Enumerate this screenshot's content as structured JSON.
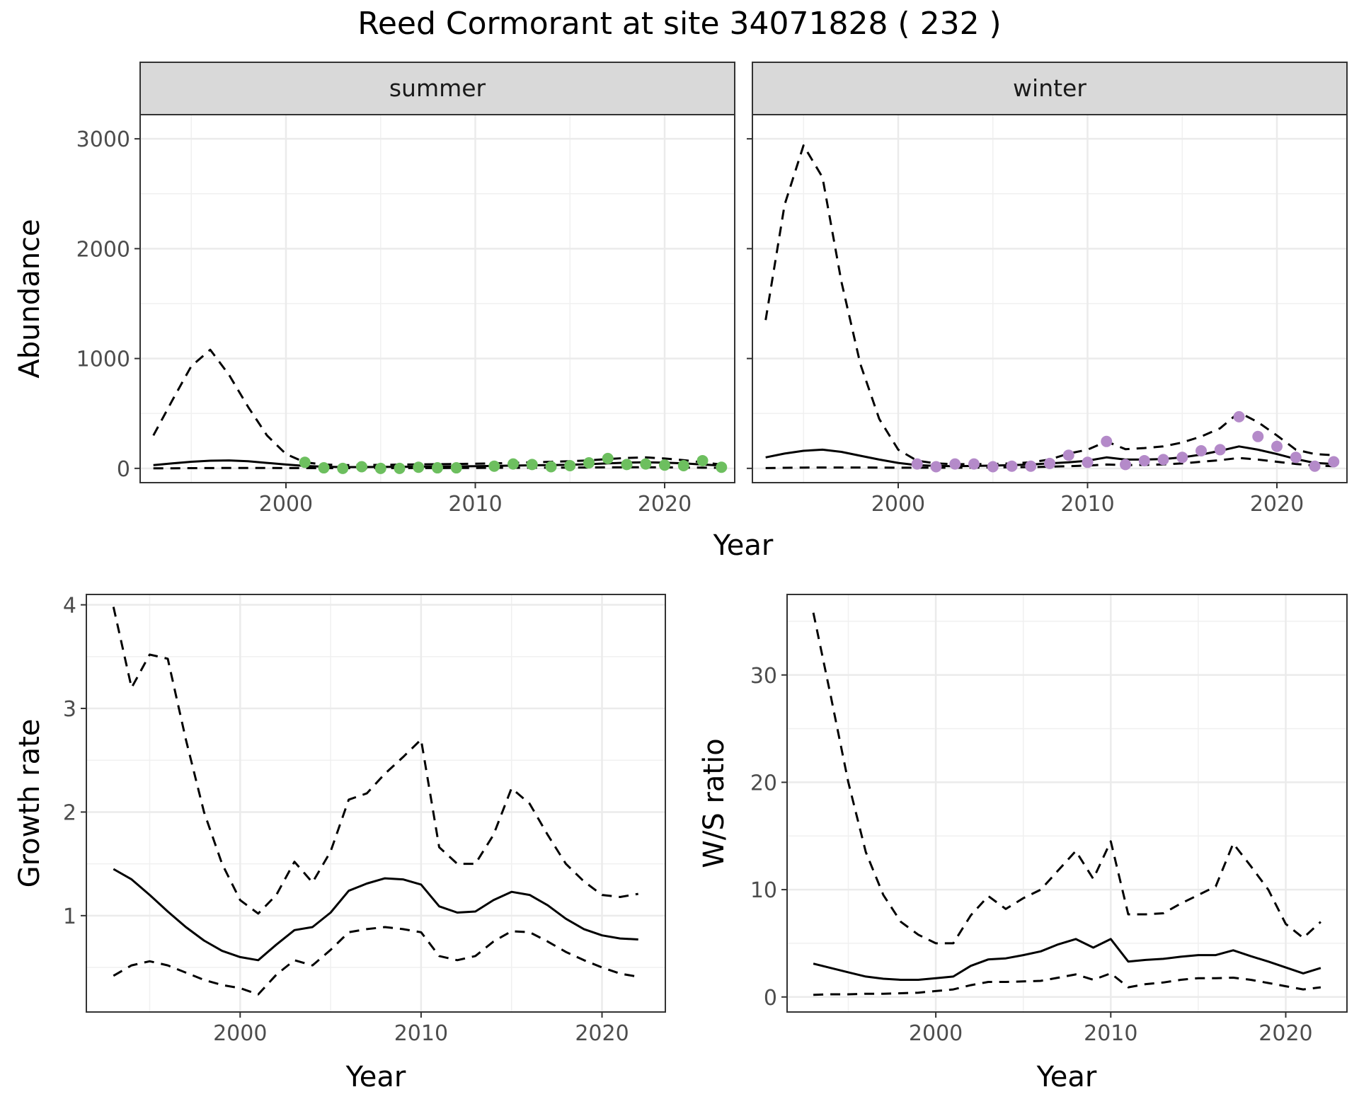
{
  "title": "Reed Cormorant at site 34071828 ( 232 )",
  "chart_data": [
    {
      "type": "line",
      "panel": "summer",
      "strip_label": "summer",
      "xlabel": "Year",
      "ylabel": "Abundance",
      "xlim": [
        1992.3,
        2023.7
      ],
      "ylim": [
        -130,
        3220
      ],
      "xticks": [
        2000,
        2010,
        2020
      ],
      "yticks": [
        0,
        1000,
        2000,
        3000
      ],
      "grid": true,
      "point_color": "#6dbf5f",
      "series": [
        {
          "role": "mean",
          "style": "solid",
          "x": [
            1993,
            1994,
            1995,
            1996,
            1997,
            1998,
            1999,
            2000,
            2001,
            2002,
            2003,
            2004,
            2005,
            2006,
            2007,
            2008,
            2009,
            2010,
            2011,
            2012,
            2013,
            2014,
            2015,
            2016,
            2017,
            2018,
            2019,
            2020,
            2021,
            2022,
            2023
          ],
          "values": [
            30,
            45,
            60,
            70,
            72,
            65,
            50,
            35,
            22,
            15,
            12,
            12,
            13,
            14,
            15,
            17,
            18,
            20,
            22,
            25,
            28,
            30,
            33,
            38,
            45,
            52,
            55,
            52,
            45,
            35,
            25
          ]
        },
        {
          "role": "upper",
          "style": "dashed",
          "x": [
            1993,
            1994,
            1995,
            1996,
            1997,
            1998,
            1999,
            2000,
            2001,
            2002,
            2003,
            2004,
            2005,
            2006,
            2007,
            2008,
            2009,
            2010,
            2011,
            2012,
            2013,
            2014,
            2015,
            2016,
            2017,
            2018,
            2019,
            2020,
            2021,
            2022,
            2023
          ],
          "values": [
            300,
            620,
            930,
            1080,
            850,
            560,
            300,
            130,
            55,
            35,
            30,
            30,
            32,
            34,
            36,
            38,
            40,
            42,
            45,
            50,
            55,
            60,
            65,
            72,
            85,
            95,
            100,
            90,
            75,
            55,
            35
          ]
        },
        {
          "role": "lower",
          "style": "dashed",
          "x": [
            1993,
            1994,
            1995,
            1996,
            1997,
            1998,
            1999,
            2000,
            2001,
            2002,
            2003,
            2004,
            2005,
            2006,
            2007,
            2008,
            2009,
            2010,
            2011,
            2012,
            2013,
            2014,
            2015,
            2016,
            2017,
            2018,
            2019,
            2020,
            2021,
            2022,
            2023
          ],
          "values": [
            0,
            1,
            2,
            3,
            4,
            4,
            4,
            3,
            3,
            2,
            2,
            2,
            2,
            3,
            3,
            3,
            4,
            4,
            5,
            5,
            6,
            6,
            7,
            8,
            9,
            10,
            10,
            9,
            8,
            6,
            5
          ]
        },
        {
          "role": "counts",
          "style": "points",
          "x": [
            2001,
            2002,
            2003,
            2004,
            2005,
            2006,
            2007,
            2008,
            2009,
            2011,
            2012,
            2013,
            2014,
            2015,
            2016,
            2017,
            2018,
            2019,
            2020,
            2021,
            2022,
            2023
          ],
          "values": [
            55,
            5,
            0,
            15,
            0,
            0,
            10,
            5,
            5,
            20,
            40,
            35,
            15,
            25,
            50,
            90,
            35,
            40,
            30,
            25,
            70,
            10
          ]
        }
      ]
    },
    {
      "type": "line",
      "panel": "winter",
      "strip_label": "winter",
      "xlabel": "Year",
      "ylabel": "Abundance",
      "xlim": [
        1992.3,
        2023.7
      ],
      "ylim": [
        -130,
        3220
      ],
      "xticks": [
        2000,
        2010,
        2020
      ],
      "yticks": [
        0,
        1000,
        2000,
        3000
      ],
      "grid": true,
      "point_color": "#b48ac9",
      "series": [
        {
          "role": "mean",
          "style": "solid",
          "x": [
            1993,
            1994,
            1995,
            1996,
            1997,
            1998,
            1999,
            2000,
            2001,
            2002,
            2003,
            2004,
            2005,
            2006,
            2007,
            2008,
            2009,
            2010,
            2011,
            2012,
            2013,
            2014,
            2015,
            2016,
            2017,
            2018,
            2019,
            2020,
            2021,
            2022,
            2023
          ],
          "values": [
            100,
            135,
            160,
            170,
            150,
            115,
            80,
            50,
            30,
            22,
            20,
            22,
            25,
            30,
            35,
            45,
            55,
            70,
            100,
            80,
            80,
            85,
            100,
            125,
            160,
            200,
            170,
            130,
            85,
            50,
            40
          ]
        },
        {
          "role": "upper",
          "style": "dashed",
          "x": [
            1993,
            1994,
            1995,
            1996,
            1997,
            1998,
            1999,
            2000,
            2001,
            2002,
            2003,
            2004,
            2005,
            2006,
            2007,
            2008,
            2009,
            2010,
            2011,
            2012,
            2013,
            2014,
            2015,
            2016,
            2017,
            2018,
            2019,
            2020,
            2021,
            2022,
            2023
          ],
          "values": [
            1350,
            2400,
            2940,
            2650,
            1700,
            950,
            450,
            170,
            70,
            45,
            38,
            38,
            40,
            45,
            55,
            80,
            135,
            170,
            245,
            175,
            185,
            200,
            235,
            290,
            365,
            510,
            420,
            300,
            170,
            130,
            120
          ]
        },
        {
          "role": "lower",
          "style": "dashed",
          "x": [
            1993,
            1994,
            1995,
            1996,
            1997,
            1998,
            1999,
            2000,
            2001,
            2002,
            2003,
            2004,
            2005,
            2006,
            2007,
            2008,
            2009,
            2010,
            2011,
            2012,
            2013,
            2014,
            2015,
            2016,
            2017,
            2018,
            2019,
            2020,
            2021,
            2022,
            2023
          ],
          "values": [
            3,
            5,
            7,
            8,
            8,
            8,
            7,
            6,
            6,
            6,
            6,
            7,
            8,
            10,
            12,
            15,
            20,
            25,
            35,
            30,
            32,
            36,
            45,
            60,
            75,
            95,
            80,
            60,
            40,
            25,
            20
          ]
        },
        {
          "role": "counts",
          "style": "points",
          "x": [
            2001,
            2002,
            2003,
            2004,
            2005,
            2006,
            2007,
            2008,
            2009,
            2010,
            2011,
            2012,
            2013,
            2014,
            2015,
            2016,
            2017,
            2018,
            2019,
            2020,
            2021,
            2022,
            2023
          ],
          "values": [
            40,
            15,
            40,
            40,
            15,
            20,
            20,
            45,
            120,
            55,
            245,
            35,
            70,
            80,
            100,
            160,
            170,
            470,
            290,
            200,
            100,
            20,
            60
          ]
        }
      ]
    },
    {
      "type": "line",
      "panel": "growth",
      "xlabel": "Year",
      "ylabel": "Growth rate",
      "xlim": [
        1991.5,
        2023.5
      ],
      "ylim": [
        0.07,
        4.1
      ],
      "xticks": [
        2000,
        2010,
        2020
      ],
      "yticks": [
        1,
        2,
        3,
        4
      ],
      "grid": true,
      "series": [
        {
          "role": "mean",
          "style": "solid",
          "x": [
            1993,
            1994,
            1995,
            1996,
            1997,
            1998,
            1999,
            2000,
            2001,
            2002,
            2003,
            2004,
            2005,
            2006,
            2007,
            2008,
            2009,
            2010,
            2011,
            2012,
            2013,
            2014,
            2015,
            2016,
            2017,
            2018,
            2019,
            2020,
            2021,
            2022
          ],
          "values": [
            1.45,
            1.35,
            1.2,
            1.04,
            0.89,
            0.76,
            0.66,
            0.6,
            0.57,
            0.72,
            0.86,
            0.89,
            1.03,
            1.24,
            1.31,
            1.36,
            1.35,
            1.3,
            1.09,
            1.03,
            1.04,
            1.15,
            1.23,
            1.2,
            1.1,
            0.97,
            0.87,
            0.81,
            0.78,
            0.77
          ]
        },
        {
          "role": "upper",
          "style": "dashed",
          "x": [
            1993,
            1994,
            1995,
            1996,
            1997,
            1998,
            1999,
            2000,
            2001,
            2002,
            2003,
            2004,
            2005,
            2006,
            2007,
            2008,
            2009,
            2010,
            2011,
            2012,
            2013,
            2014,
            2015,
            2016,
            2017,
            2018,
            2019,
            2020,
            2021,
            2022
          ],
          "values": [
            3.98,
            3.2,
            3.52,
            3.48,
            2.7,
            2.0,
            1.5,
            1.15,
            1.02,
            1.2,
            1.52,
            1.32,
            1.62,
            2.12,
            2.18,
            2.37,
            2.53,
            2.7,
            1.66,
            1.5,
            1.5,
            1.78,
            2.23,
            2.08,
            1.78,
            1.5,
            1.33,
            1.2,
            1.18,
            1.21
          ]
        },
        {
          "role": "lower",
          "style": "dashed",
          "x": [
            1993,
            1994,
            1995,
            1996,
            1997,
            1998,
            1999,
            2000,
            2001,
            2002,
            2003,
            2004,
            2005,
            2006,
            2007,
            2008,
            2009,
            2010,
            2011,
            2012,
            2013,
            2014,
            2015,
            2016,
            2017,
            2018,
            2019,
            2020,
            2021,
            2022
          ],
          "values": [
            0.42,
            0.52,
            0.56,
            0.52,
            0.45,
            0.38,
            0.33,
            0.3,
            0.24,
            0.43,
            0.57,
            0.52,
            0.67,
            0.84,
            0.87,
            0.89,
            0.87,
            0.84,
            0.61,
            0.57,
            0.61,
            0.75,
            0.85,
            0.84,
            0.75,
            0.65,
            0.57,
            0.5,
            0.44,
            0.41
          ]
        }
      ]
    },
    {
      "type": "line",
      "panel": "ws_ratio",
      "xlabel": "Year",
      "ylabel": "W/S ratio",
      "xlim": [
        1991.5,
        2023.5
      ],
      "ylim": [
        -1.4,
        37.5
      ],
      "xticks": [
        2000,
        2010,
        2020
      ],
      "yticks": [
        0,
        10,
        20,
        30
      ],
      "grid": true,
      "series": [
        {
          "role": "mean",
          "style": "solid",
          "x": [
            1993,
            1994,
            1995,
            1996,
            1997,
            1998,
            1999,
            2000,
            2001,
            2002,
            2003,
            2004,
            2005,
            2006,
            2007,
            2008,
            2009,
            2010,
            2011,
            2012,
            2013,
            2014,
            2015,
            2016,
            2017,
            2018,
            2019,
            2020,
            2021,
            2022
          ],
          "values": [
            3.1,
            2.7,
            2.3,
            1.9,
            1.7,
            1.6,
            1.6,
            1.75,
            1.9,
            2.9,
            3.5,
            3.6,
            3.9,
            4.25,
            4.9,
            5.4,
            4.6,
            5.4,
            3.3,
            3.45,
            3.55,
            3.75,
            3.9,
            3.9,
            4.35,
            3.8,
            3.3,
            2.75,
            2.2,
            2.7
          ]
        },
        {
          "role": "upper",
          "style": "dashed",
          "x": [
            1993,
            1994,
            1995,
            1996,
            1997,
            1998,
            1999,
            2000,
            2001,
            2002,
            2003,
            2004,
            2005,
            2006,
            2007,
            2008,
            2009,
            2010,
            2011,
            2012,
            2013,
            2014,
            2015,
            2016,
            2017,
            2018,
            2019,
            2020,
            2021,
            2022
          ],
          "values": [
            35.8,
            28,
            20,
            13.5,
            9.5,
            7,
            5.8,
            5,
            5,
            7.6,
            9.4,
            8.2,
            9.2,
            10,
            11.8,
            13.6,
            11,
            14.5,
            7.7,
            7.7,
            7.8,
            8.7,
            9.5,
            10.3,
            14.3,
            12.2,
            10,
            6.8,
            5.5,
            7
          ]
        },
        {
          "role": "lower",
          "style": "dashed",
          "x": [
            1993,
            1994,
            1995,
            1996,
            1997,
            1998,
            1999,
            2000,
            2001,
            2002,
            2003,
            2004,
            2005,
            2006,
            2007,
            2008,
            2009,
            2010,
            2011,
            2012,
            2013,
            2014,
            2015,
            2016,
            2017,
            2018,
            2019,
            2020,
            2021,
            2022
          ],
          "values": [
            0.2,
            0.25,
            0.25,
            0.3,
            0.3,
            0.35,
            0.4,
            0.55,
            0.7,
            1.1,
            1.4,
            1.4,
            1.45,
            1.5,
            1.8,
            2.1,
            1.6,
            2.2,
            0.9,
            1.2,
            1.35,
            1.6,
            1.75,
            1.75,
            1.8,
            1.6,
            1.3,
            1.0,
            0.7,
            0.9
          ]
        }
      ]
    }
  ]
}
